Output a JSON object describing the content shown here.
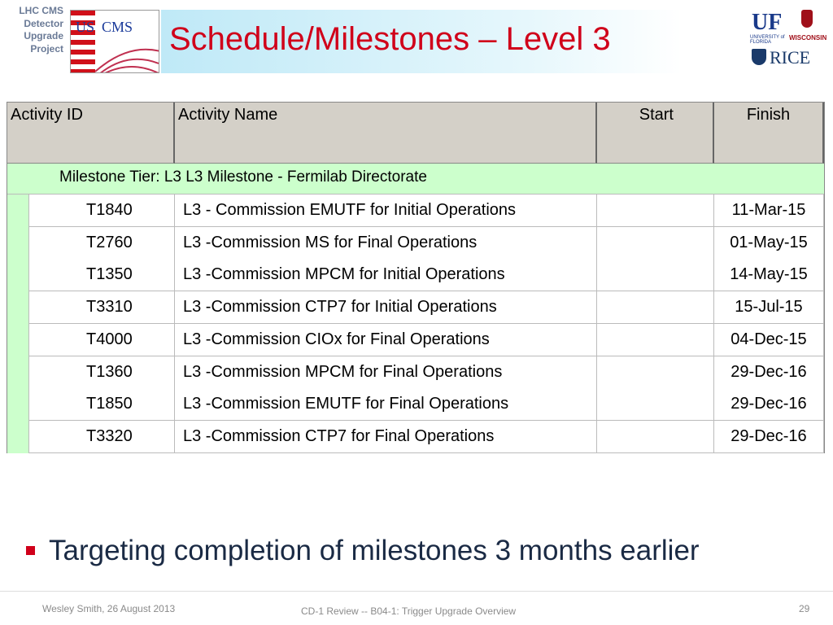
{
  "header": {
    "org": [
      "LHC CMS",
      "Detector",
      "Upgrade",
      "Project"
    ],
    "title": "Schedule/Milestones – Level 3",
    "logos": {
      "uscms": [
        "US",
        "CMS"
      ],
      "uf": "UF",
      "florida": "UNIVERSITY of FLORIDA",
      "wisconsin": "WISCONSIN",
      "rice": "RICE"
    }
  },
  "table": {
    "columns": [
      "Activity ID",
      "Activity Name",
      "Start",
      "Finish"
    ],
    "group": "Milestone Tier: L3  L3 Milestone - Fermilab Directorate",
    "rows": [
      {
        "id": "T1840",
        "name": "L3 - Commission EMUTF for Initial Operations",
        "finish": "11-Mar-15"
      },
      {
        "id": "T2760",
        "name": "L3 -Commission MS for Final Operations",
        "finish": "01-May-15"
      },
      {
        "id": "T1350",
        "name": "L3 -Commission MPCM for Initial Operations",
        "finish": "14-May-15"
      },
      {
        "id": "T3310",
        "name": "L3 -Commission CTP7 for Initial Operations",
        "finish": "15-Jul-15"
      },
      {
        "id": "T4000",
        "name": "L3 -Commission CIOx for Final Operations",
        "finish": "04-Dec-15"
      },
      {
        "id": "T1360",
        "name": "L3 -Commission MPCM for Final Operations",
        "finish": "29-Dec-16"
      },
      {
        "id": "T1850",
        "name": "L3 -Commission EMUTF for Final Operations",
        "finish": "29-Dec-16"
      },
      {
        "id": "T3320",
        "name": "L3 -Commission CTP7 for Final Operations",
        "finish": "29-Dec-16"
      }
    ]
  },
  "bullet": "Targeting completion of milestones 3 months earlier",
  "footer": {
    "left": "Wesley Smith, 26 August 2013",
    "center": "CD-1  Review -- B04-1: Trigger Upgrade Overview",
    "page": "29"
  }
}
